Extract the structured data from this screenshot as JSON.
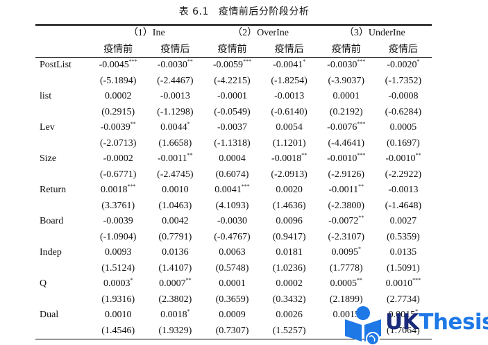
{
  "title": {
    "number": "表 6.1",
    "text": "疫情前后分阶段分析"
  },
  "table": {
    "groups": [
      {
        "label": "（1）Ine",
        "span": 2
      },
      {
        "label": "（2）OverIne",
        "span": 2
      },
      {
        "label": "（3）UnderIne",
        "span": 2
      }
    ],
    "subheaders": [
      "疫情前",
      "疫情后",
      "疫情前",
      "疫情后",
      "疫情前",
      "疫情后"
    ],
    "rows": [
      {
        "variable": "PostList",
        "coef": [
          {
            "v": "-0.0045",
            "s": "***"
          },
          {
            "v": "-0.0030",
            "s": "**"
          },
          {
            "v": "-0.0059",
            "s": "***"
          },
          {
            "v": "-0.0041",
            "s": "*"
          },
          {
            "v": "-0.0030",
            "s": "***"
          },
          {
            "v": "-0.0020",
            "s": "*"
          }
        ],
        "t": [
          "(-5.1894)",
          "(-2.4467)",
          "(-4.2215)",
          "(-1.8254)",
          "(-3.9037)",
          "(-1.7352)"
        ]
      },
      {
        "variable": "list",
        "coef": [
          {
            "v": "0.0002",
            "s": ""
          },
          {
            "v": "-0.0013",
            "s": ""
          },
          {
            "v": "-0.0001",
            "s": ""
          },
          {
            "v": "-0.0013",
            "s": ""
          },
          {
            "v": "0.0001",
            "s": ""
          },
          {
            "v": "-0.0008",
            "s": ""
          }
        ],
        "t": [
          "(0.2915)",
          "(-1.1298)",
          "(-0.0549)",
          "(-0.6140)",
          "(0.2192)",
          "(-0.6284)"
        ]
      },
      {
        "variable": "Lev",
        "coef": [
          {
            "v": "-0.0039",
            "s": "**"
          },
          {
            "v": "0.0044",
            "s": "*"
          },
          {
            "v": "-0.0037",
            "s": ""
          },
          {
            "v": "0.0054",
            "s": ""
          },
          {
            "v": "-0.0076",
            "s": "***"
          },
          {
            "v": "0.0005",
            "s": ""
          }
        ],
        "t": [
          "(-2.0713)",
          "(1.6658)",
          "(-1.1318)",
          "(1.1201)",
          "(-4.4641)",
          "(0.1697)"
        ]
      },
      {
        "variable": "Size",
        "coef": [
          {
            "v": "-0.0002",
            "s": ""
          },
          {
            "v": "-0.0011",
            "s": "**"
          },
          {
            "v": "0.0004",
            "s": ""
          },
          {
            "v": "-0.0018",
            "s": "**"
          },
          {
            "v": "-0.0010",
            "s": "***"
          },
          {
            "v": "-0.0010",
            "s": "**"
          }
        ],
        "t": [
          "(-0.6771)",
          "(-2.4745)",
          "(0.6074)",
          "(-2.0913)",
          "(-2.9126)",
          "(-2.2922)"
        ]
      },
      {
        "variable": "Return",
        "coef": [
          {
            "v": "0.0018",
            "s": "***"
          },
          {
            "v": "0.0010",
            "s": ""
          },
          {
            "v": "0.0041",
            "s": "***"
          },
          {
            "v": "0.0020",
            "s": ""
          },
          {
            "v": "-0.0011",
            "s": "**"
          },
          {
            "v": "-0.0013",
            "s": ""
          }
        ],
        "t": [
          "(3.3761)",
          "(1.0463)",
          "(4.1093)",
          "(1.4636)",
          "(-2.3800)",
          "(-1.4648)"
        ]
      },
      {
        "variable": "Board",
        "coef": [
          {
            "v": "-0.0039",
            "s": ""
          },
          {
            "v": "0.0042",
            "s": ""
          },
          {
            "v": "-0.0030",
            "s": ""
          },
          {
            "v": "0.0096",
            "s": ""
          },
          {
            "v": "-0.0072",
            "s": "**"
          },
          {
            "v": "0.0027",
            "s": ""
          }
        ],
        "t": [
          "(-1.0904)",
          "(0.7791)",
          "(-0.4767)",
          "(0.9417)",
          "(-2.3107)",
          "(0.5359)"
        ]
      },
      {
        "variable": "Indep",
        "coef": [
          {
            "v": "0.0093",
            "s": ""
          },
          {
            "v": "0.0136",
            "s": ""
          },
          {
            "v": "0.0063",
            "s": ""
          },
          {
            "v": "0.0181",
            "s": ""
          },
          {
            "v": "0.0095",
            "s": "*"
          },
          {
            "v": "0.0135",
            "s": ""
          }
        ],
        "t": [
          "(1.5124)",
          "(1.4107)",
          "(0.5748)",
          "(1.0236)",
          "(1.7778)",
          "(1.5091)"
        ]
      },
      {
        "variable": "Q",
        "coef": [
          {
            "v": "0.0003",
            "s": "*"
          },
          {
            "v": "0.0007",
            "s": "**"
          },
          {
            "v": "0.0001",
            "s": ""
          },
          {
            "v": "0.0002",
            "s": ""
          },
          {
            "v": "0.0005",
            "s": "**"
          },
          {
            "v": "0.0010",
            "s": "***"
          }
        ],
        "t": [
          "(1.9316)",
          "(2.3802)",
          "(0.3659)",
          "(0.3432)",
          "(2.1899)",
          "(2.7734)"
        ]
      },
      {
        "variable": "Dual",
        "coef": [
          {
            "v": "0.0010",
            "s": ""
          },
          {
            "v": "0.0018",
            "s": "*"
          },
          {
            "v": "0.0009",
            "s": ""
          },
          {
            "v": "0.0026",
            "s": ""
          },
          {
            "v": "0.0015",
            "s": ""
          },
          {
            "v": "0.0015",
            "s": "*"
          }
        ],
        "t": [
          "(1.4546)",
          "(1.9329)",
          "(0.7307)",
          "(1.5257)",
          "",
          "(1.7064)"
        ]
      }
    ]
  },
  "watermark": {
    "part1": "UK",
    "part2": "Thesis",
    "colors": {
      "uk": "#1a2a7a",
      "thesis": "#1e78e6",
      "icon": "#1e78e6"
    }
  }
}
